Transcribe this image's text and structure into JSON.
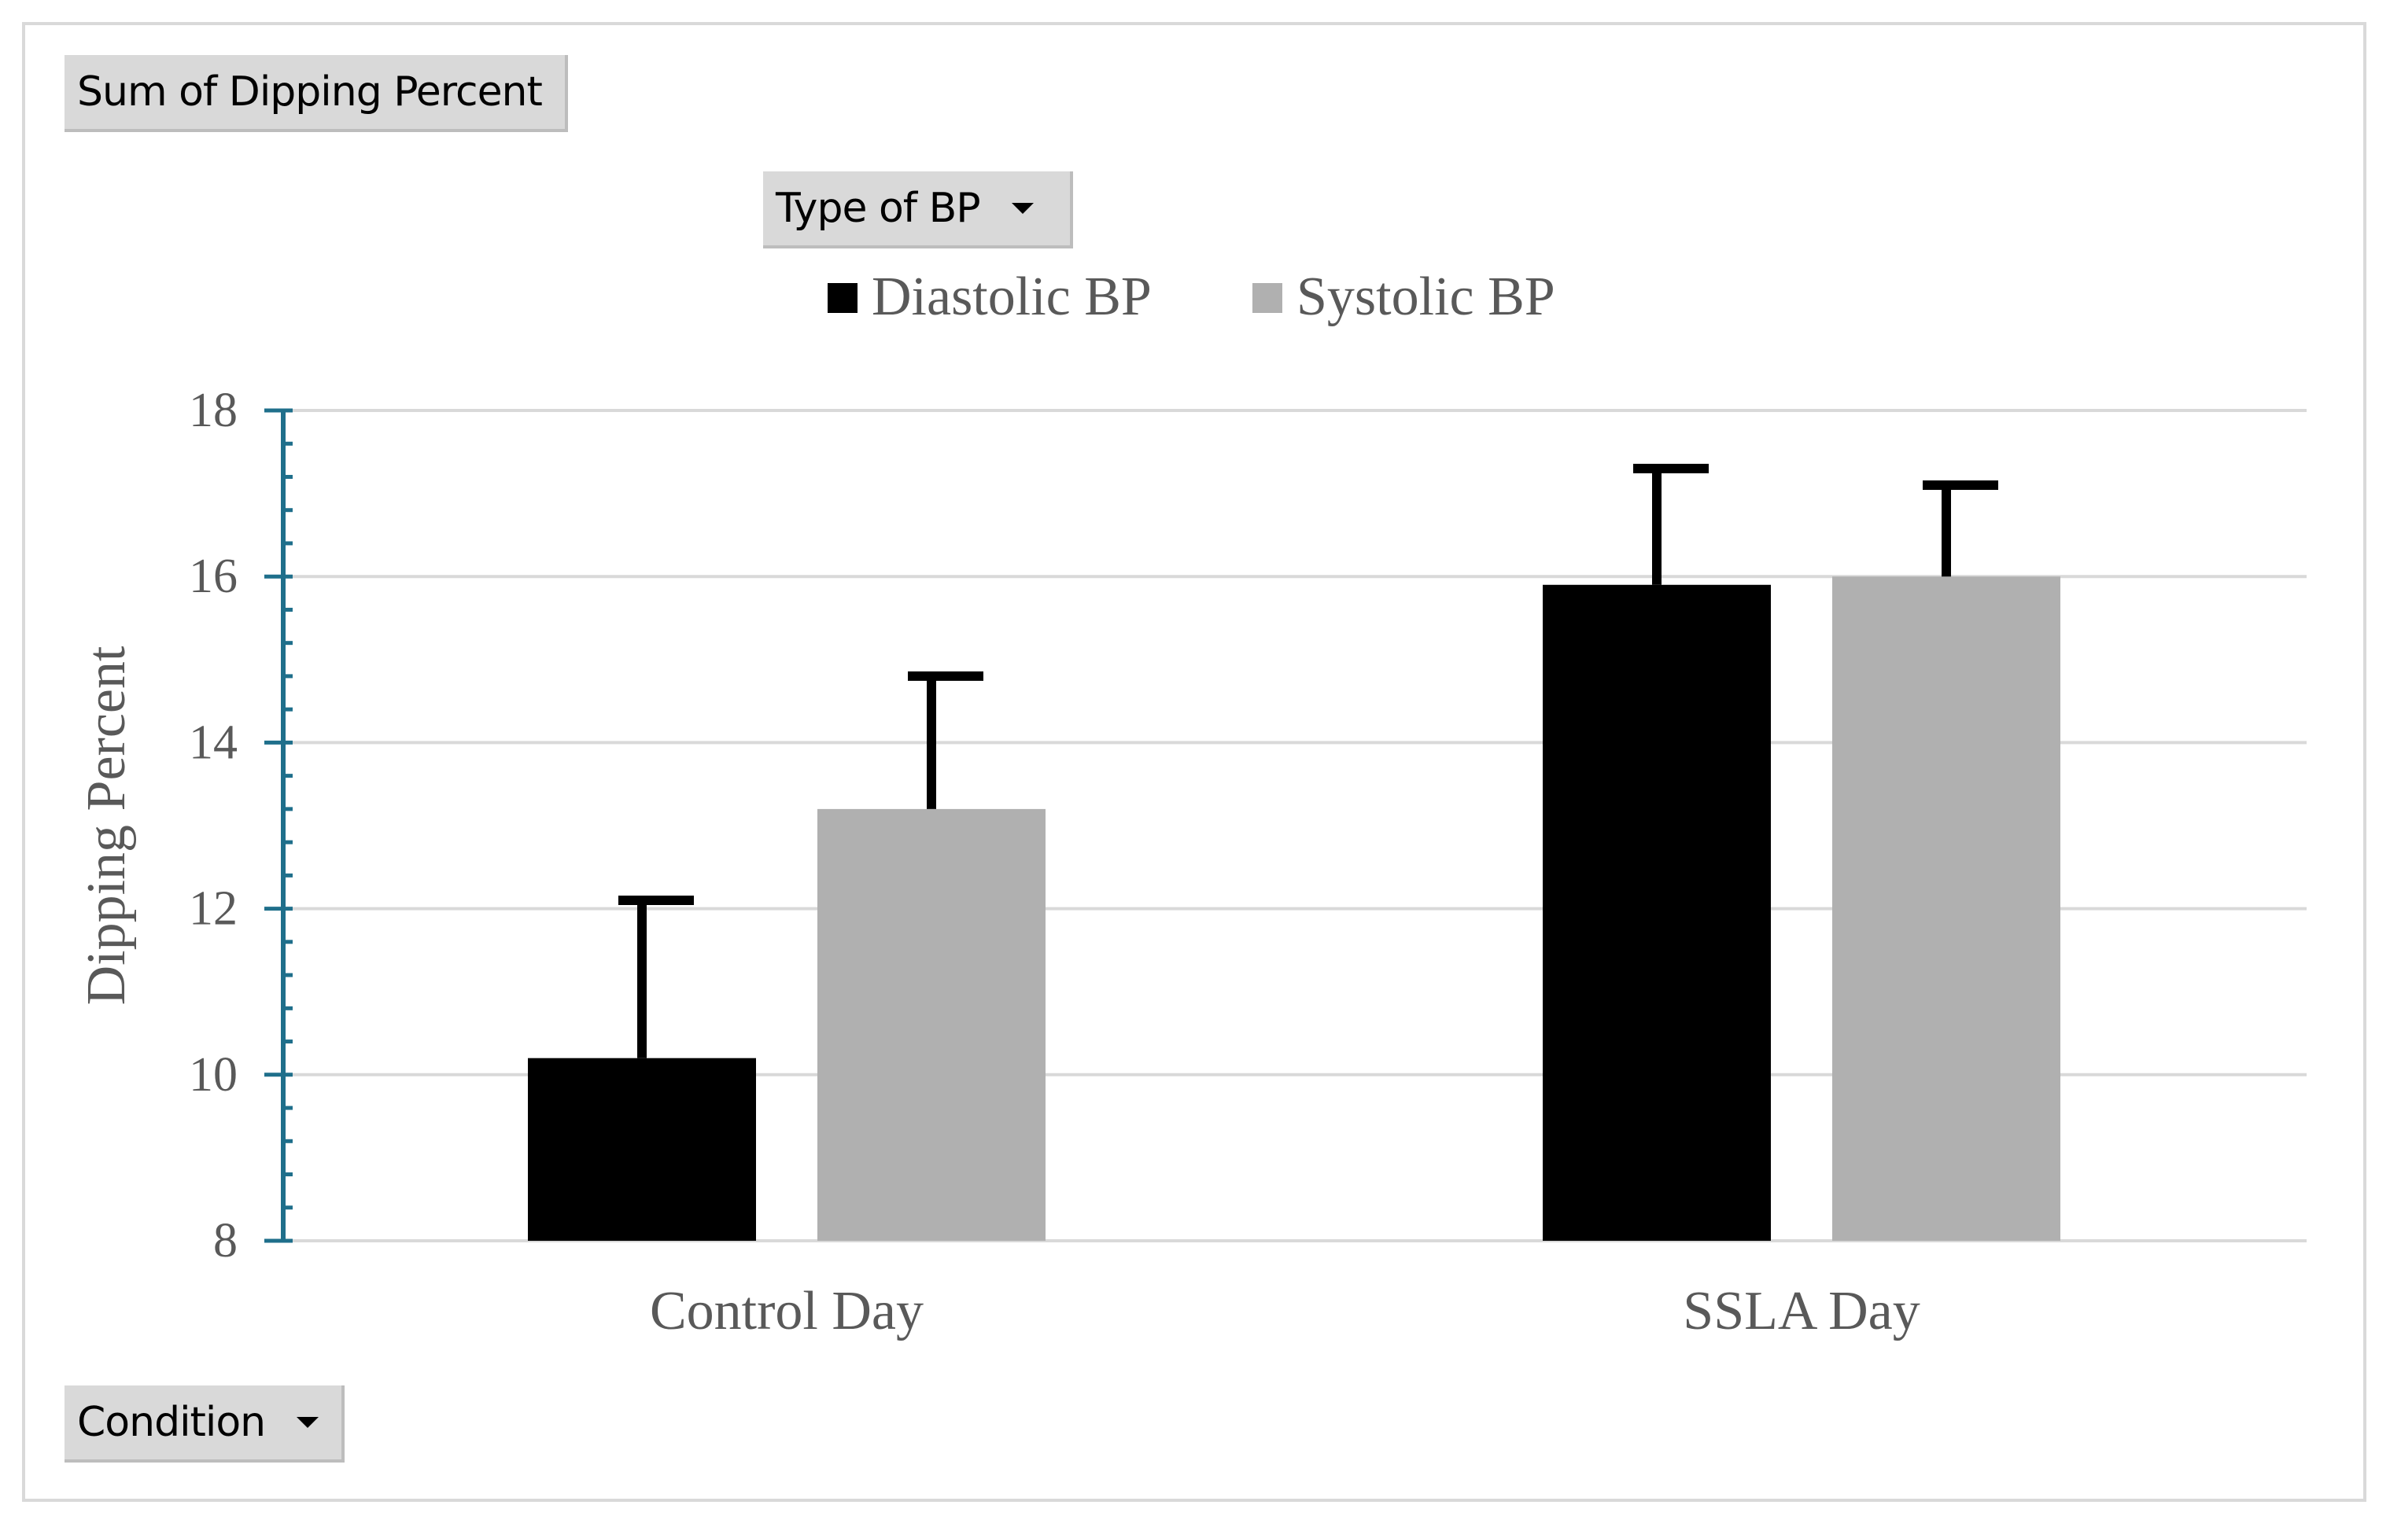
{
  "pivot_fields": {
    "values_field": "Sum of Dipping Percent",
    "legend_field": "Type of BP",
    "axis_field": "Condition"
  },
  "colors": {
    "diastolic": "#000000",
    "systolic": "#b0b0b0",
    "gridline": "#d9d9d9",
    "axis": "#1f6f8b",
    "text": "#595959"
  },
  "chart_data": {
    "type": "bar",
    "categories": [
      "Control Day",
      "SSLA Day"
    ],
    "series": [
      {
        "name": "Diastolic BP",
        "values": [
          10.2,
          15.9
        ],
        "error_plus": [
          1.9,
          1.4
        ]
      },
      {
        "name": "Systolic BP",
        "values": [
          13.2,
          16.0
        ],
        "error_plus": [
          1.6,
          1.1
        ]
      }
    ],
    "ylabel": "Dipping Percent",
    "ylim": [
      8,
      18
    ],
    "yticks": [
      "8",
      "10",
      "12",
      "14",
      "16",
      "18"
    ],
    "grid": true,
    "legend_position": "top"
  }
}
